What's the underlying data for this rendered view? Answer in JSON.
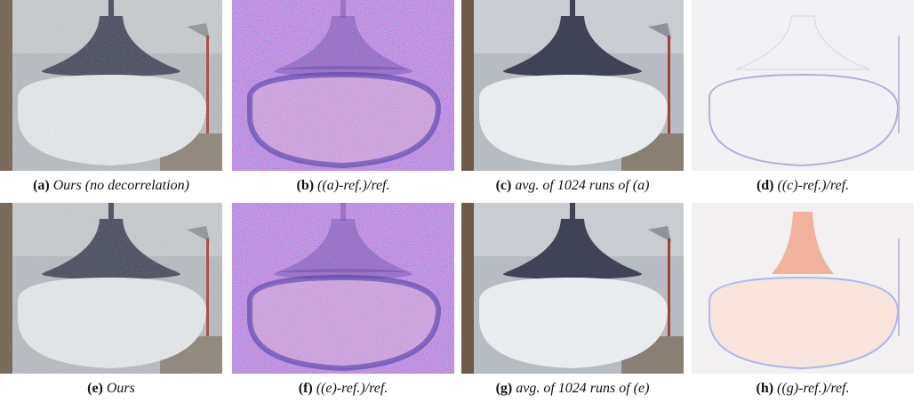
{
  "figures": [
    {
      "label": "(a)",
      "caption": "Ours (no decorrelation)"
    },
    {
      "label": "(b)",
      "caption": "((a)-ref.)/ref."
    },
    {
      "label": "(c)",
      "caption": "avg. of 1024 runs of (a)"
    },
    {
      "label": "(d)",
      "caption": "((c)-ref.)/ref."
    },
    {
      "label": "(e)",
      "caption": "Ours"
    },
    {
      "label": "(f)",
      "caption": "((e)-ref.)/ref."
    },
    {
      "label": "(g)",
      "caption": "avg. of 1024 runs of (e)"
    },
    {
      "label": "(h)",
      "caption": "((g)-ref.)/ref."
    }
  ]
}
